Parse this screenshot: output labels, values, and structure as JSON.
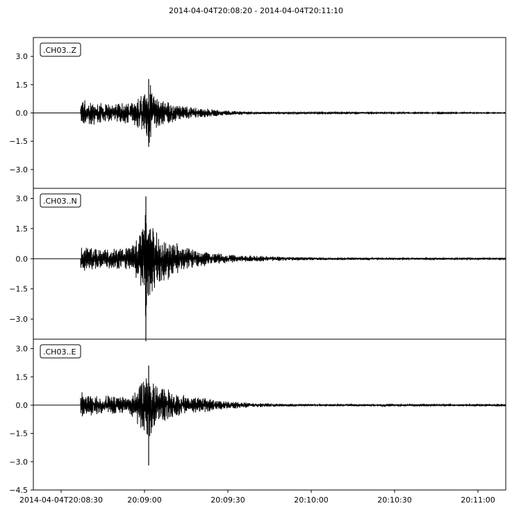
{
  "title": "2014-04-04T20:08:20  -  2014-04-04T20:11:10",
  "chart_data": {
    "type": "line",
    "x_ticks": [
      "2014-04-04T20:08:30",
      "20:09:00",
      "20:09:30",
      "20:10:00",
      "20:10:30",
      "20:11:00"
    ],
    "x_tick_seconds": [
      10,
      40,
      70,
      100,
      130,
      160
    ],
    "x_range_seconds": [
      0,
      170
    ],
    "panels": [
      {
        "label": ".CH03..Z",
        "ylim": [
          -4.0,
          4.0
        ],
        "yticks": [
          "3.0",
          "1.5",
          "0.0",
          "−1.5",
          "−3.0"
        ],
        "ytick_values": [
          3.0,
          1.5,
          0.0,
          -1.5,
          -3.0
        ],
        "envelope": {
          "onset_s": 17.0,
          "max_s": 41.5,
          "max_value": 1.8,
          "min_value": -1.8,
          "points": [
            [
              17,
              0.9
            ],
            [
              20,
              0.7
            ],
            [
              25,
              0.6
            ],
            [
              30,
              0.5
            ],
            [
              35,
              0.6
            ],
            [
              38,
              0.9
            ],
            [
              40,
              1.3
            ],
            [
              41.5,
              1.8
            ],
            [
              43,
              1.0
            ],
            [
              45,
              0.8
            ],
            [
              50,
              0.5
            ],
            [
              55,
              0.35
            ],
            [
              60,
              0.28
            ],
            [
              65,
              0.2
            ],
            [
              70,
              0.12
            ],
            [
              80,
              0.07
            ],
            [
              90,
              0.05
            ],
            [
              100,
              0.04
            ],
            [
              120,
              0.03
            ],
            [
              150,
              0.03
            ],
            [
              170,
              0.02
            ]
          ]
        }
      },
      {
        "label": ".CH03..N",
        "ylim": [
          -4.0,
          3.5
        ],
        "yticks": [
          "3.0",
          "1.5",
          "0.0",
          "−1.5",
          "−3.0"
        ],
        "ytick_values": [
          3.0,
          1.5,
          0.0,
          -1.5,
          -3.0
        ],
        "envelope": {
          "onset_s": 17.0,
          "max_s": 40.5,
          "max_value": 3.1,
          "min_value": -4.1,
          "points": [
            [
              17,
              0.7
            ],
            [
              20,
              0.6
            ],
            [
              25,
              0.5
            ],
            [
              30,
              0.5
            ],
            [
              35,
              0.6
            ],
            [
              38,
              1.2
            ],
            [
              40,
              2.5
            ],
            [
              40.5,
              3.1
            ],
            [
              41,
              2.6
            ],
            [
              43,
              1.6
            ],
            [
              45,
              1.3
            ],
            [
              47,
              1.2
            ],
            [
              50,
              0.9
            ],
            [
              55,
              0.6
            ],
            [
              60,
              0.4
            ],
            [
              65,
              0.3
            ],
            [
              70,
              0.2
            ],
            [
              80,
              0.15
            ],
            [
              90,
              0.1
            ],
            [
              100,
              0.07
            ],
            [
              120,
              0.06
            ],
            [
              150,
              0.05
            ],
            [
              170,
              0.05
            ]
          ]
        }
      },
      {
        "label": ".CH03..E",
        "ylim": [
          -4.5,
          3.5
        ],
        "yticks": [
          "3.0",
          "1.5",
          "0.0",
          "−1.5",
          "−3.0",
          "−4.5"
        ],
        "ytick_values": [
          3.0,
          1.5,
          0.0,
          -1.5,
          -3.0,
          -4.5
        ],
        "envelope": {
          "onset_s": 17.0,
          "max_s": 41.5,
          "max_value": 2.1,
          "min_value": -3.2,
          "points": [
            [
              17,
              0.8
            ],
            [
              20,
              0.6
            ],
            [
              25,
              0.5
            ],
            [
              30,
              0.45
            ],
            [
              35,
              0.5
            ],
            [
              38,
              1.2
            ],
            [
              40,
              1.6
            ],
            [
              41.5,
              2.1
            ],
            [
              43,
              1.4
            ],
            [
              45,
              1.0
            ],
            [
              50,
              0.8
            ],
            [
              55,
              0.5
            ],
            [
              60,
              0.4
            ],
            [
              65,
              0.3
            ],
            [
              70,
              0.2
            ],
            [
              80,
              0.12
            ],
            [
              90,
              0.08
            ],
            [
              100,
              0.06
            ],
            [
              120,
              0.05
            ],
            [
              150,
              0.04
            ],
            [
              170,
              0.04
            ]
          ]
        }
      }
    ]
  }
}
